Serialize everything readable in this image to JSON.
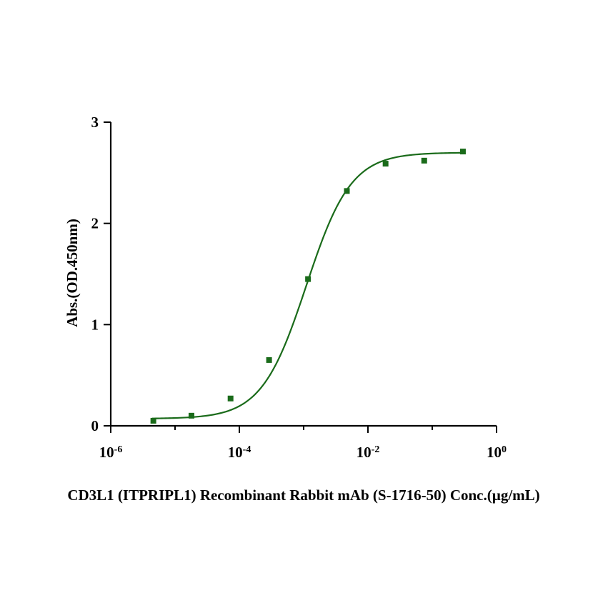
{
  "chart_data": {
    "type": "scatter",
    "title": "",
    "xlabel": "CD3L1 (ITPRIPL1) Recombinant Rabbit mAb (S-1716-50) Conc.(µg/mL)",
    "ylabel": "Abs.(OD.450nm)",
    "xscale": "log10",
    "xlim": [
      1e-06,
      1
    ],
    "ylim": [
      0,
      3
    ],
    "x_ticks": [
      {
        "base": "10",
        "exp": "-6",
        "value": 1e-06
      },
      {
        "base": "10",
        "exp": "-4",
        "value": 0.0001
      },
      {
        "base": "10",
        "exp": "-2",
        "value": 0.01
      },
      {
        "base": "10",
        "exp": "0",
        "value": 1
      }
    ],
    "y_ticks": [
      {
        "label": "0",
        "value": 0
      },
      {
        "label": "1",
        "value": 1
      },
      {
        "label": "2",
        "value": 2
      },
      {
        "label": "3",
        "value": 3
      }
    ],
    "series": [
      {
        "name": "CD3L1 (ITPRIPL1) Recombinant Rabbit mAb (S-1716-50)",
        "color": "#1a6b1a",
        "marker": "square",
        "points": [
          {
            "x": 4.6e-06,
            "y": 0.05
          },
          {
            "x": 1.8e-05,
            "y": 0.1
          },
          {
            "x": 7.3e-05,
            "y": 0.27
          },
          {
            "x": 0.00029,
            "y": 0.65
          },
          {
            "x": 0.00117,
            "y": 1.45
          },
          {
            "x": 0.0047,
            "y": 2.32
          },
          {
            "x": 0.0188,
            "y": 2.59
          },
          {
            "x": 0.075,
            "y": 2.62
          },
          {
            "x": 0.3,
            "y": 2.71
          }
        ],
        "fit": {
          "model": "4PL",
          "bottom": 0.07,
          "top": 2.7,
          "ec50": 0.0011,
          "hill": 1.25,
          "x_range": [
            4.4e-06,
            0.3
          ]
        }
      }
    ]
  }
}
